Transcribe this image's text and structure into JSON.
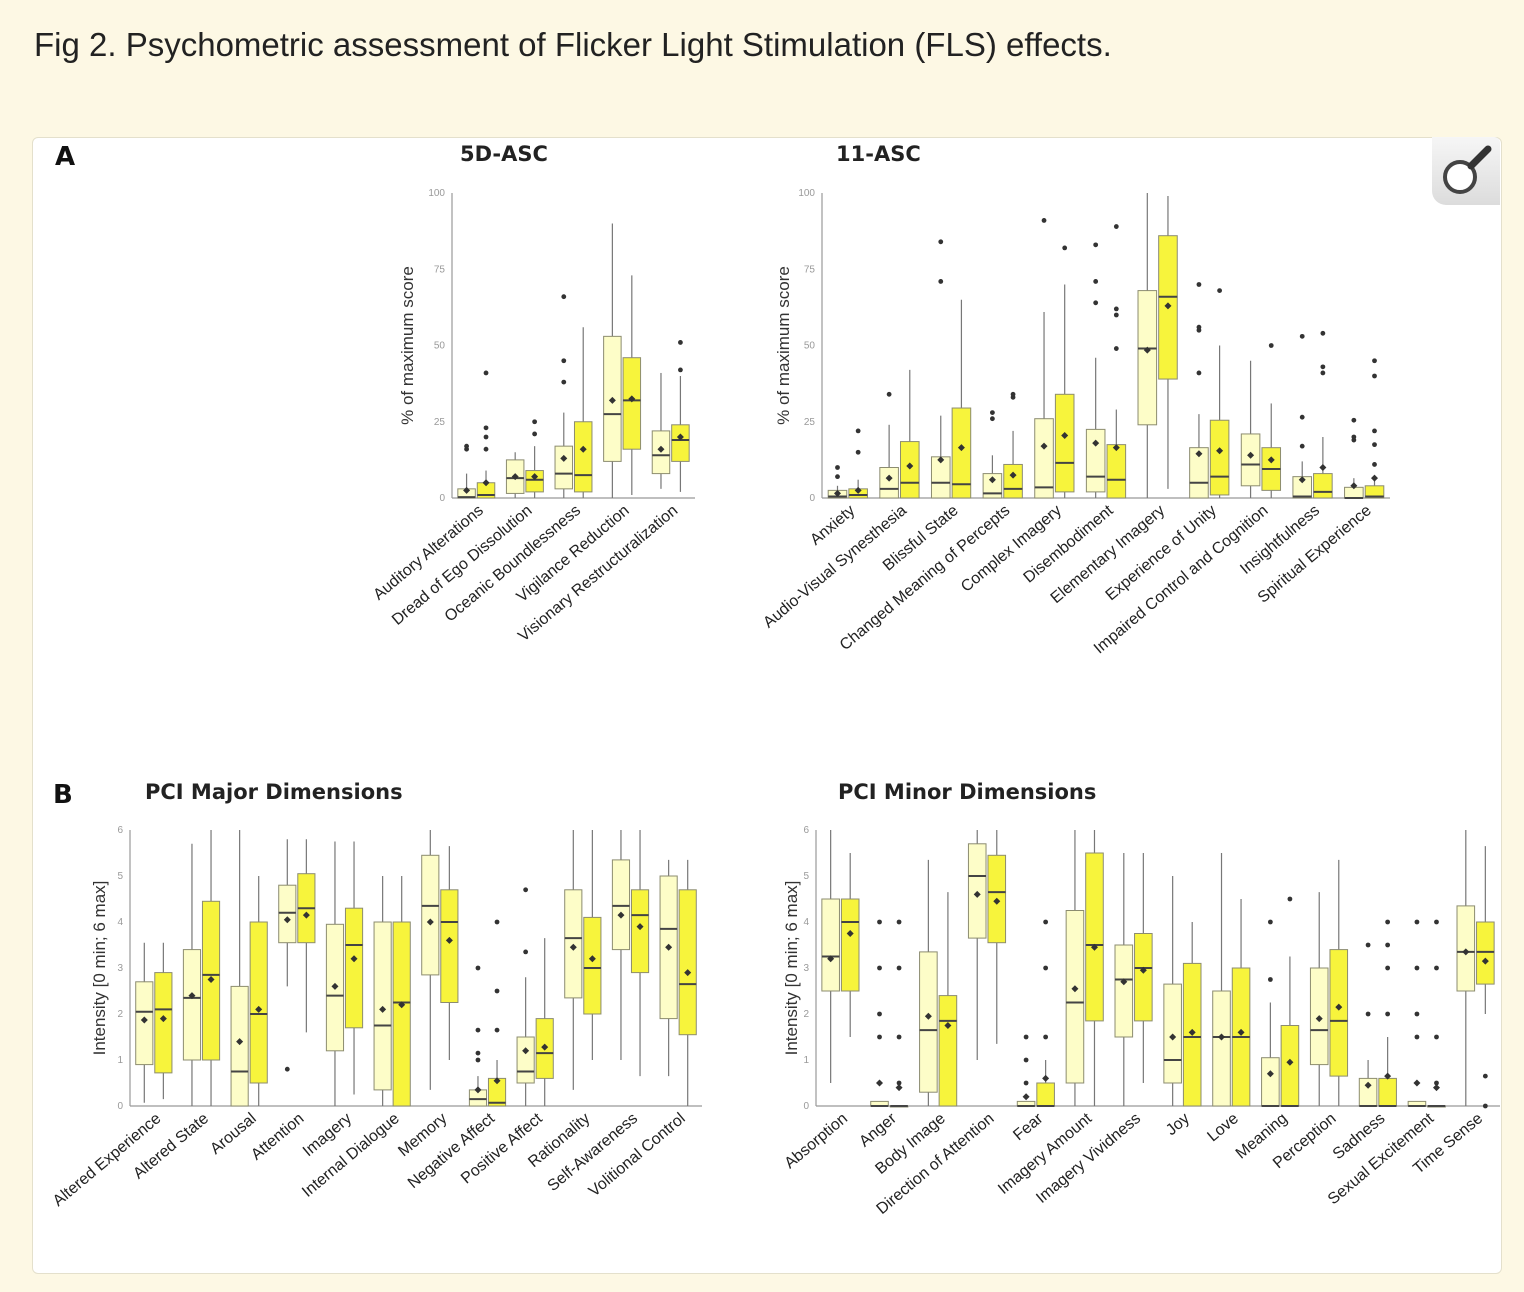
{
  "figure": {
    "title": "Fig 2. Psychometric assessment of Flicker Light Stimulation (FLS) effects.",
    "panel_labels": [
      "A",
      "B"
    ],
    "zoom_icon": "magnifier-icon"
  },
  "colors": {
    "series1_fill": "#fdfdc8",
    "series2_fill": "#f7f43c",
    "box_stroke": "#8c8c70",
    "marker": "#333333"
  },
  "chart_data": [
    {
      "type": "box",
      "title": "5D-ASC",
      "ylabel": "% of maximum score",
      "ylim": [
        0,
        100
      ],
      "yticks": [
        0,
        25,
        50,
        75,
        100
      ],
      "grid": false,
      "box_fields": [
        "min",
        "q1",
        "median",
        "q3",
        "max",
        "mean",
        "outliers"
      ],
      "categories": [
        "Auditory Alterations",
        "Dread of Ego Dissolution",
        "Oceanic Boundlessness",
        "Vigilance Reduction",
        "Visionary Restructuralization"
      ],
      "series": [
        {
          "boxes": [
            [
              0,
              0,
              0.3,
              3,
              8,
              2.5,
              [
                16,
                17
              ]
            ],
            [
              0,
              1.5,
              6.5,
              12.5,
              15,
              7,
              []
            ],
            [
              0,
              3,
              8,
              17,
              28,
              13,
              [
                38,
                45,
                66
              ]
            ],
            [
              0,
              12,
              27.5,
              53,
              90,
              32,
              []
            ],
            [
              3,
              8,
              14,
              22,
              41,
              16,
              []
            ]
          ]
        },
        {
          "boxes": [
            [
              0,
              0,
              1,
              5,
              9,
              5,
              [
                16,
                20,
                23,
                41
              ]
            ],
            [
              0,
              2,
              6,
              9,
              17,
              7,
              [
                21,
                25
              ]
            ],
            [
              0,
              2,
              7.5,
              25,
              56,
              16,
              []
            ],
            [
              1,
              16,
              32,
              46,
              73,
              32.5,
              []
            ],
            [
              2,
              12,
              19,
              24,
              40,
              20,
              [
                42,
                51
              ]
            ]
          ]
        }
      ]
    },
    {
      "type": "box",
      "title": "11-ASC",
      "ylabel": "% of maximum score",
      "ylim": [
        0,
        100
      ],
      "yticks": [
        0,
        25,
        50,
        75,
        100
      ],
      "grid": false,
      "box_fields": [
        "min",
        "q1",
        "median",
        "q3",
        "max",
        "mean",
        "outliers"
      ],
      "categories": [
        "Anxiety",
        "Audio-Visual Synesthesia",
        "Blissful State",
        "Changed Meaning of Percepts",
        "Complex Imagery",
        "Disembodiment",
        "Elementary Imagery",
        "Experience of Unity",
        "Impaired Control and Cognition",
        "Insightfulness",
        "Spiritual Experience"
      ],
      "series": [
        {
          "boxes": [
            [
              0,
              0,
              0.5,
              2.5,
              4,
              1.5,
              [
                7,
                10
              ]
            ],
            [
              0,
              0,
              3,
              10,
              24,
              6.5,
              [
                34
              ]
            ],
            [
              0,
              0,
              5,
              13.5,
              27,
              12.5,
              [
                71,
                84
              ]
            ],
            [
              0,
              0,
              1.5,
              8,
              14,
              6,
              [
                26,
                28
              ]
            ],
            [
              0,
              0,
              3.5,
              26,
              61,
              17,
              [
                91
              ]
            ],
            [
              0,
              2,
              7,
              22.5,
              46,
              18,
              [
                64,
                71,
                83
              ]
            ],
            [
              0,
              24,
              49,
              68,
              100,
              48.5,
              []
            ],
            [
              0,
              0,
              5,
              16.5,
              27.5,
              14.5,
              [
                41,
                55,
                56,
                70
              ]
            ],
            [
              0,
              4,
              11,
              21,
              45,
              14,
              []
            ],
            [
              0,
              0,
              0.5,
              7,
              12,
              6,
              [
                17,
                26.5,
                53
              ]
            ],
            [
              0,
              0,
              0,
              3.5,
              6.5,
              4,
              [
                19,
                20,
                25.5
              ]
            ]
          ]
        },
        {
          "boxes": [
            [
              0,
              0,
              1,
              3,
              6,
              2.5,
              [
                15,
                22
              ]
            ],
            [
              0,
              0,
              5,
              18.5,
              42,
              10.5,
              []
            ],
            [
              0,
              0,
              4.5,
              29.5,
              65,
              16.5,
              []
            ],
            [
              0,
              0,
              3,
              11,
              22,
              7.5,
              [
                33,
                34
              ]
            ],
            [
              0,
              2,
              11.5,
              34,
              70,
              20.5,
              [
                82
              ]
            ],
            [
              0,
              0,
              6,
              17.5,
              29,
              16.5,
              [
                49,
                60,
                62,
                89
              ]
            ],
            [
              3,
              39,
              66,
              86,
              99,
              63,
              []
            ],
            [
              0,
              1,
              7,
              25.5,
              50,
              15.5,
              [
                68
              ]
            ],
            [
              0,
              2.5,
              9.5,
              16.5,
              31,
              12.5,
              [
                50
              ]
            ],
            [
              0,
              0,
              2,
              8,
              20,
              10,
              [
                41,
                43,
                54
              ]
            ],
            [
              0,
              0,
              0.5,
              4,
              6,
              6.5,
              [
                11,
                17.5,
                22,
                40,
                45
              ]
            ]
          ]
        }
      ]
    },
    {
      "type": "box",
      "title": "PCI Major Dimensions",
      "ylabel": "Intensity [0 min; 6 max]",
      "ylim": [
        0,
        6
      ],
      "yticks": [
        0,
        1,
        2,
        3,
        4,
        5,
        6
      ],
      "grid": false,
      "box_fields": [
        "min",
        "q1",
        "median",
        "q3",
        "max",
        "mean",
        "outliers"
      ],
      "categories": [
        "Altered Experience",
        "Altered State",
        "Arousal",
        "Attention",
        "Imagery",
        "Internal Dialogue",
        "Memory",
        "Negative Affect",
        "Positive Affect",
        "Rationality",
        "Self-Awareness",
        "Volitional Control"
      ],
      "series": [
        {
          "boxes": [
            [
              0.07,
              0.9,
              2.05,
              2.7,
              3.55,
              1.87,
              []
            ],
            [
              0,
              1,
              2.35,
              3.4,
              5.7,
              2.4,
              []
            ],
            [
              0,
              0,
              0.75,
              2.6,
              6,
              1.4,
              []
            ],
            [
              2.6,
              3.55,
              4.2,
              4.8,
              5.8,
              4.05,
              [
                0.8
              ]
            ],
            [
              0,
              1.2,
              2.4,
              3.95,
              5.75,
              2.6,
              []
            ],
            [
              0,
              0.35,
              1.75,
              4,
              5,
              2.1,
              []
            ],
            [
              0.35,
              2.85,
              4.35,
              5.45,
              6,
              4.0,
              []
            ],
            [
              0,
              0,
              0.15,
              0.35,
              0.65,
              0.35,
              [
                1,
                1.15,
                1.65,
                3
              ]
            ],
            [
              0,
              0.5,
              0.75,
              1.5,
              2.8,
              1.2,
              [
                3.35,
                4.7
              ]
            ],
            [
              0.35,
              2.35,
              3.65,
              4.7,
              6,
              3.45,
              []
            ],
            [
              1,
              3.4,
              4.35,
              5.35,
              6,
              4.15,
              []
            ],
            [
              0.65,
              1.9,
              3.85,
              5,
              5.35,
              3.45,
              []
            ]
          ]
        },
        {
          "boxes": [
            [
              0.15,
              0.72,
              2.1,
              2.9,
              3.55,
              1.9,
              []
            ],
            [
              0,
              1,
              2.85,
              4.45,
              6,
              2.75,
              []
            ],
            [
              0,
              0.5,
              2,
              4,
              5,
              2.1,
              []
            ],
            [
              1.6,
              3.55,
              4.3,
              5.05,
              5.8,
              4.15,
              []
            ],
            [
              0.25,
              1.7,
              3.5,
              4.3,
              5.75,
              3.2,
              []
            ],
            [
              0,
              0,
              2.25,
              4,
              5,
              2.2,
              []
            ],
            [
              1,
              2.25,
              4,
              4.7,
              5.65,
              3.6,
              []
            ],
            [
              0,
              0,
              0.07,
              0.6,
              1,
              0.55,
              [
                1.65,
                2.5,
                4
              ]
            ],
            [
              0,
              0.6,
              1.15,
              1.9,
              3.65,
              1.28,
              []
            ],
            [
              1,
              2,
              3,
              4.1,
              6,
              3.2,
              []
            ],
            [
              0.65,
              2.9,
              4.15,
              4.7,
              6,
              3.9,
              []
            ],
            [
              0,
              1.55,
              2.65,
              4.7,
              5.35,
              2.9,
              []
            ]
          ]
        }
      ]
    },
    {
      "type": "box",
      "title": "PCI Minor Dimensions",
      "ylabel": "Intensity [0 min; 6 max]",
      "ylim": [
        0,
        6
      ],
      "yticks": [
        0,
        1,
        2,
        3,
        4,
        5,
        6
      ],
      "grid": false,
      "box_fields": [
        "min",
        "q1",
        "median",
        "q3",
        "max",
        "mean",
        "outliers"
      ],
      "categories": [
        "Absorption",
        "Anger",
        "Body Image",
        "Direction of Attention",
        "Fear",
        "Imagery Amount",
        "Imagery Vividness",
        "Joy",
        "Love",
        "Meaning",
        "Perception",
        "Sadness",
        "Sexual Excitement",
        "Time Sense"
      ],
      "series": [
        {
          "boxes": [
            [
              0.5,
              2.5,
              3.25,
              4.5,
              6,
              3.2,
              []
            ],
            [
              0,
              0,
              0,
              0.1,
              0.1,
              0.5,
              [
                1.5,
                2,
                3,
                4
              ]
            ],
            [
              0,
              0.3,
              1.65,
              3.35,
              5.35,
              1.95,
              []
            ],
            [
              1,
              3.65,
              5,
              5.7,
              6,
              4.6,
              []
            ],
            [
              0,
              0,
              0,
              0.1,
              0.1,
              0.2,
              [
                0.5,
                1,
                1.5
              ]
            ],
            [
              0,
              0.5,
              2.25,
              4.25,
              6,
              2.55,
              []
            ],
            [
              0,
              1.5,
              2.75,
              3.5,
              5.5,
              2.7,
              []
            ],
            [
              0,
              0.5,
              1,
              2.65,
              5,
              1.5,
              []
            ],
            [
              0,
              0,
              1.5,
              2.5,
              5.5,
              1.5,
              []
            ],
            [
              0,
              0,
              0,
              1.05,
              2.25,
              0.7,
              [
                2.75,
                4
              ]
            ],
            [
              0,
              0.9,
              1.65,
              3,
              4.65,
              1.9,
              []
            ],
            [
              0,
              0,
              0,
              0.6,
              1,
              0.45,
              [
                2,
                3.5
              ]
            ],
            [
              0,
              0,
              0,
              0.1,
              0.1,
              0.5,
              [
                1.5,
                2,
                3,
                4
              ]
            ],
            [
              0,
              2.5,
              3.35,
              4.35,
              6,
              3.35,
              []
            ]
          ]
        },
        {
          "boxes": [
            [
              1.5,
              2.5,
              4,
              4.5,
              5.5,
              3.75,
              []
            ],
            [
              0,
              0,
              0,
              0,
              0,
              0.4,
              [
                0.5,
                1.5,
                3,
                4
              ]
            ],
            [
              0,
              0,
              1.85,
              2.4,
              4.65,
              1.75,
              []
            ],
            [
              1.35,
              3.55,
              4.65,
              5.45,
              6,
              4.45,
              []
            ],
            [
              0,
              0,
              0,
              0.5,
              1,
              0.6,
              [
                1.5,
                3,
                4
              ]
            ],
            [
              0,
              1.85,
              3.5,
              5.5,
              6,
              3.45,
              []
            ],
            [
              0.5,
              1.85,
              3,
              3.75,
              5.5,
              2.95,
              []
            ],
            [
              0,
              0,
              1.5,
              3.1,
              4,
              1.6,
              []
            ],
            [
              0,
              0,
              1.5,
              3,
              4.5,
              1.6,
              []
            ],
            [
              0,
              0,
              0,
              1.75,
              3.25,
              0.95,
              [
                4.5
              ]
            ],
            [
              0,
              0.65,
              1.85,
              3.4,
              5.35,
              2.15,
              []
            ],
            [
              0,
              0,
              0,
              0.6,
              1.5,
              0.65,
              [
                2,
                3,
                3.5,
                4
              ]
            ],
            [
              0,
              0,
              0,
              0,
              0,
              0.4,
              [
                0.5,
                1.5,
                3,
                4
              ]
            ],
            [
              2,
              2.65,
              3.35,
              4,
              5.65,
              3.15,
              [
                0,
                0.65
              ]
            ]
          ]
        }
      ]
    }
  ]
}
